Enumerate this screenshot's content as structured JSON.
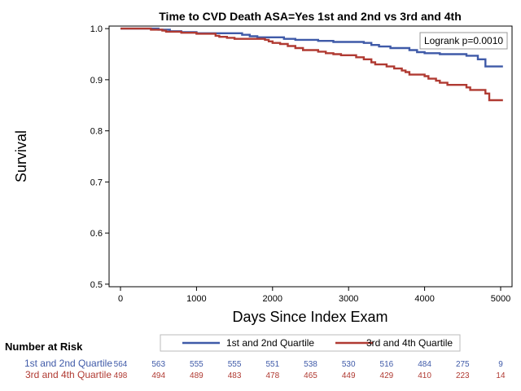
{
  "chart_data": {
    "type": "line",
    "step": true,
    "title": "Time to CVD Death ASA=Yes 1st and 2nd vs 3rd and 4th",
    "xlabel": "Days Since Index Exam",
    "ylabel": "Survival",
    "xlim": [
      -150,
      5150
    ],
    "ylim": [
      0.495,
      1.005
    ],
    "xticks": [
      0,
      1000,
      2000,
      3000,
      4000,
      5000
    ],
    "yticks": [
      0.5,
      0.6,
      0.7,
      0.8,
      0.9,
      1.0
    ],
    "ytick_labels": [
      "0.5",
      "0.6",
      "0.7",
      "0.8",
      "0.9",
      "1.0"
    ],
    "grid": false,
    "legend_position": "bottom",
    "annotation": "Logrank p=0.0010",
    "series": [
      {
        "name": "1st and 2nd Quartile",
        "color": "#3f5aa8",
        "points": [
          [
            0,
            1.0
          ],
          [
            500,
            0.998
          ],
          [
            650,
            0.995
          ],
          [
            800,
            0.993
          ],
          [
            1000,
            0.991
          ],
          [
            1600,
            0.988
          ],
          [
            1700,
            0.985
          ],
          [
            1800,
            0.983
          ],
          [
            2150,
            0.98
          ],
          [
            2300,
            0.978
          ],
          [
            2600,
            0.976
          ],
          [
            2800,
            0.974
          ],
          [
            3200,
            0.972
          ],
          [
            3300,
            0.968
          ],
          [
            3400,
            0.965
          ],
          [
            3550,
            0.962
          ],
          [
            3800,
            0.958
          ],
          [
            3900,
            0.954
          ],
          [
            4000,
            0.952
          ],
          [
            4200,
            0.95
          ],
          [
            4550,
            0.947
          ],
          [
            4700,
            0.94
          ],
          [
            4800,
            0.926
          ],
          [
            5030,
            0.926
          ]
        ]
      },
      {
        "name": "3rd and 4th Quartile",
        "color": "#b03a32",
        "points": [
          [
            0,
            1.0
          ],
          [
            400,
            0.998
          ],
          [
            550,
            0.996
          ],
          [
            600,
            0.994
          ],
          [
            800,
            0.992
          ],
          [
            1000,
            0.99
          ],
          [
            1250,
            0.986
          ],
          [
            1300,
            0.984
          ],
          [
            1400,
            0.982
          ],
          [
            1500,
            0.98
          ],
          [
            1900,
            0.978
          ],
          [
            1950,
            0.975
          ],
          [
            2000,
            0.972
          ],
          [
            2100,
            0.97
          ],
          [
            2200,
            0.966
          ],
          [
            2300,
            0.962
          ],
          [
            2400,
            0.958
          ],
          [
            2600,
            0.955
          ],
          [
            2700,
            0.952
          ],
          [
            2800,
            0.95
          ],
          [
            2900,
            0.948
          ],
          [
            3100,
            0.944
          ],
          [
            3200,
            0.94
          ],
          [
            3300,
            0.934
          ],
          [
            3350,
            0.93
          ],
          [
            3500,
            0.926
          ],
          [
            3600,
            0.922
          ],
          [
            3700,
            0.918
          ],
          [
            3750,
            0.915
          ],
          [
            3800,
            0.91
          ],
          [
            4000,
            0.907
          ],
          [
            4050,
            0.902
          ],
          [
            4150,
            0.898
          ],
          [
            4200,
            0.894
          ],
          [
            4300,
            0.89
          ],
          [
            4550,
            0.885
          ],
          [
            4600,
            0.88
          ],
          [
            4800,
            0.873
          ],
          [
            4850,
            0.86
          ],
          [
            5030,
            0.86
          ]
        ]
      }
    ],
    "risk_table": {
      "title": "Number at Risk",
      "times": [
        0,
        500,
        1000,
        1500,
        2000,
        2500,
        3000,
        3500,
        4000,
        4500,
        5000
      ],
      "rows": [
        {
          "name": "1st and 2nd Quartile",
          "color": "#3f5aa8",
          "values": [
            "564",
            "563",
            "555",
            "555",
            "551",
            "538",
            "530",
            "516",
            "484",
            "275",
            "9"
          ]
        },
        {
          "name": "3rd and 4th Quartile",
          "color": "#b03a32",
          "values": [
            "498",
            "494",
            "489",
            "483",
            "478",
            "465",
            "449",
            "429",
            "410",
            "223",
            "14"
          ]
        }
      ]
    }
  }
}
